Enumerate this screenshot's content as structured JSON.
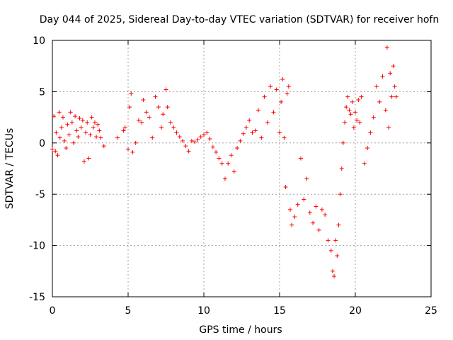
{
  "chart_data": {
    "type": "scatter",
    "title": "Day 044 of 2025, Sidereal Day-to-day VTEC variation (SDTVAR) for receiver hofn",
    "xlabel": "GPS time / hours",
    "ylabel": "SDTVAR / TECUs",
    "xlim": [
      0,
      25
    ],
    "ylim": [
      -15,
      10
    ],
    "xticks": [
      0,
      5,
      10,
      15,
      20,
      25
    ],
    "yticks": [
      -15,
      -10,
      -5,
      0,
      5,
      10
    ],
    "grid": true,
    "marker": "+",
    "marker_color": "#ff0000",
    "series": [
      {
        "name": "SDTVAR",
        "x": [
          0.0,
          0.1,
          0.2,
          0.25,
          0.35,
          0.45,
          0.5,
          0.6,
          0.7,
          0.8,
          0.9,
          1.0,
          1.1,
          1.2,
          1.3,
          1.4,
          1.5,
          1.6,
          1.7,
          1.8,
          1.9,
          2.0,
          2.1,
          2.2,
          2.3,
          2.4,
          2.5,
          2.6,
          2.7,
          2.8,
          2.9,
          3.0,
          3.1,
          3.2,
          3.4,
          4.3,
          4.7,
          4.8,
          5.0,
          5.1,
          5.2,
          5.3,
          5.5,
          5.7,
          5.9,
          6.0,
          6.2,
          6.4,
          6.6,
          6.8,
          7.0,
          7.2,
          7.3,
          7.5,
          7.6,
          7.8,
          8.0,
          8.2,
          8.4,
          8.6,
          8.8,
          9.0,
          9.2,
          9.4,
          9.6,
          9.8,
          10.0,
          10.2,
          10.4,
          10.6,
          10.8,
          11.0,
          11.2,
          11.4,
          11.6,
          11.8,
          12.0,
          12.2,
          12.4,
          12.6,
          12.8,
          13.0,
          13.2,
          13.4,
          13.6,
          13.8,
          14.0,
          14.2,
          14.4,
          14.6,
          14.8,
          15.0,
          15.1,
          15.2,
          15.3,
          15.4,
          15.5,
          15.6,
          15.7,
          15.8,
          16.0,
          16.2,
          16.4,
          16.6,
          16.8,
          17.0,
          17.2,
          17.4,
          17.6,
          17.8,
          18.0,
          18.2,
          18.4,
          18.5,
          18.6,
          18.7,
          18.8,
          18.9,
          19.0,
          19.1,
          19.2,
          19.3,
          19.4,
          19.5,
          19.6,
          19.7,
          19.8,
          19.9,
          20.0,
          20.1,
          20.2,
          20.3,
          20.4,
          20.6,
          20.8,
          21.0,
          21.2,
          21.4,
          21.6,
          21.8,
          22.0,
          22.1,
          22.2,
          22.3,
          22.4,
          22.5,
          22.6,
          22.7
        ],
        "y": [
          -0.6,
          2.6,
          -0.8,
          1.0,
          -1.2,
          3.0,
          0.5,
          1.5,
          2.5,
          0.2,
          -0.5,
          1.8,
          0.8,
          3.0,
          2.0,
          0.0,
          2.6,
          1.2,
          0.6,
          2.4,
          1.5,
          2.2,
          -1.8,
          1.0,
          2.0,
          -1.5,
          0.8,
          2.5,
          1.5,
          2.0,
          0.6,
          1.8,
          1.2,
          0.5,
          -0.3,
          0.5,
          1.2,
          1.5,
          -0.6,
          3.5,
          4.8,
          -0.9,
          0.0,
          2.2,
          2.0,
          4.2,
          3.0,
          2.5,
          0.5,
          4.5,
          3.5,
          1.5,
          2.8,
          5.2,
          3.5,
          2.0,
          1.5,
          1.0,
          0.6,
          0.2,
          -0.3,
          -0.8,
          0.2,
          0.1,
          0.3,
          0.6,
          0.8,
          1.0,
          0.4,
          -0.4,
          -0.9,
          -1.5,
          -2.0,
          -3.5,
          -2.0,
          -1.2,
          -2.8,
          -0.5,
          0.2,
          0.9,
          1.5,
          2.2,
          1.0,
          1.2,
          3.2,
          0.5,
          4.5,
          2.0,
          5.5,
          3.0,
          5.2,
          1.0,
          4.0,
          6.2,
          0.5,
          -4.3,
          4.8,
          5.5,
          -6.5,
          -8.0,
          -7.2,
          -6.0,
          -1.5,
          -5.5,
          -3.5,
          -6.8,
          -7.8,
          -6.2,
          -8.5,
          -6.5,
          -7.0,
          -9.5,
          -10.5,
          -12.5,
          -13.0,
          -9.5,
          -11.0,
          -8.0,
          -5.0,
          -2.5,
          0.0,
          2.0,
          3.5,
          4.5,
          3.2,
          2.8,
          4.0,
          1.5,
          3.0,
          2.2,
          4.2,
          2.0,
          4.5,
          -2.0,
          -0.5,
          1.0,
          2.5,
          5.5,
          4.0,
          6.5,
          3.2,
          9.3,
          1.5,
          6.8,
          4.5,
          7.5,
          5.5,
          4.5
        ]
      }
    ]
  }
}
